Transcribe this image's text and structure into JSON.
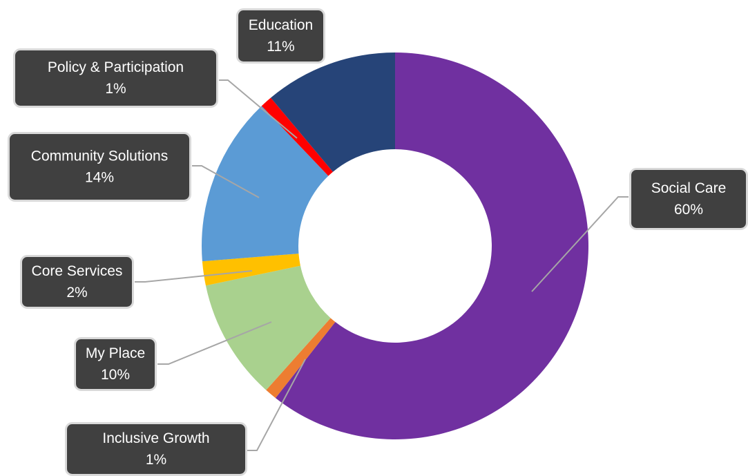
{
  "chart_data": {
    "type": "pie",
    "donut": true,
    "title": "",
    "start_angle_deg": 0,
    "slices": [
      {
        "label": "Social Care",
        "value": 60,
        "value_label": "60%",
        "color": "#7030A0"
      },
      {
        "label": "Inclusive Growth",
        "value": 1,
        "value_label": "1%",
        "color": "#ED7D31"
      },
      {
        "label": "My Place",
        "value": 10,
        "value_label": "10%",
        "color": "#A9D18E"
      },
      {
        "label": "Core Services",
        "value": 2,
        "value_label": "2%",
        "color": "#FFC000"
      },
      {
        "label": "Community Solutions",
        "value": 14,
        "value_label": "14%",
        "color": "#5B9BD5"
      },
      {
        "label": "Policy & Participation",
        "value": 1,
        "value_label": "1%",
        "color": "#FF0000"
      },
      {
        "label": "Education",
        "value": 11,
        "value_label": "11%",
        "color": "#264478"
      }
    ],
    "legend": "none",
    "label_style": "callouts"
  },
  "colors": {
    "callout_fill": "#404040",
    "callout_border": "#d9d9d9",
    "leader_line": "#a6a6a6"
  }
}
